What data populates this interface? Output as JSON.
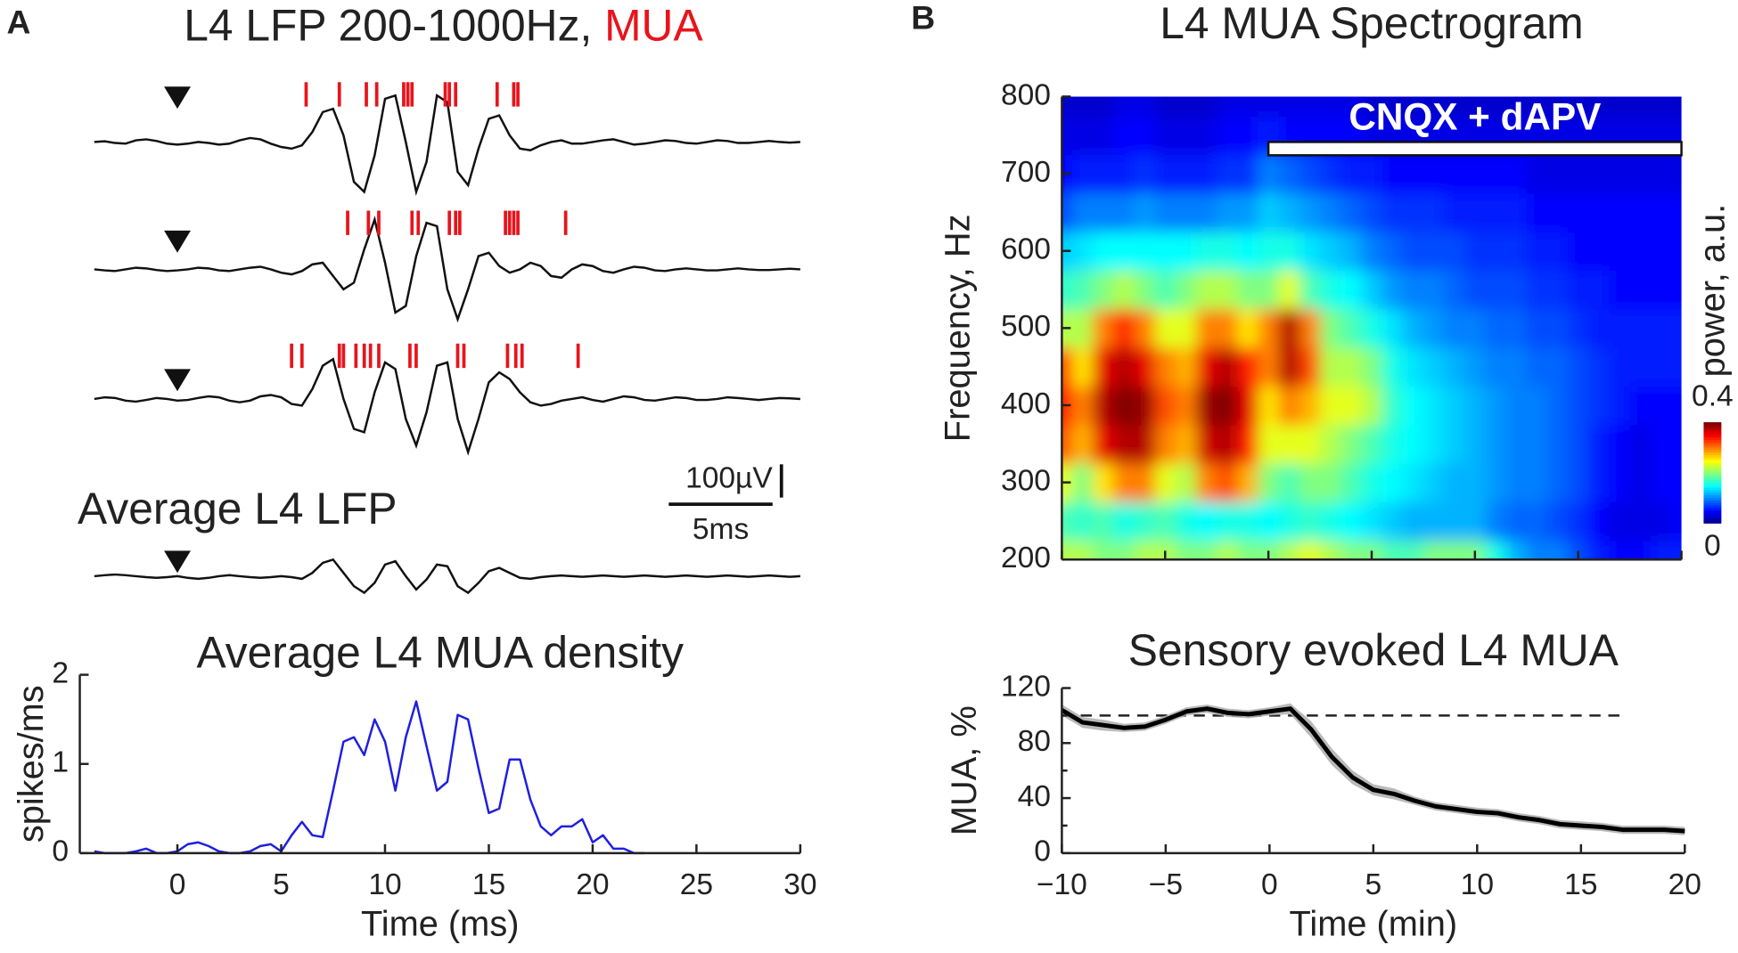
{
  "panel_labels": [
    "A",
    "B"
  ],
  "chart_data": [
    {
      "type": "traces",
      "title": "L4 LFP 200-1000Hz, ",
      "title_highlight": "MUA",
      "highlight_color": "#e8141c",
      "subtitle": "Average L4 LFP",
      "stimulus_x": 0,
      "spike_color": "#e8141c",
      "scale_bar": {
        "y_value": 100,
        "y_label": "100µV",
        "x_value": 5,
        "x_label": "5ms"
      },
      "x": [
        -4,
        -3.5,
        -3,
        -2.5,
        -2,
        -1.5,
        -1,
        -0.5,
        0,
        0.5,
        1,
        1.5,
        2,
        2.5,
        3,
        3.5,
        4,
        4.5,
        5,
        5.5,
        6,
        6.5,
        7,
        7.5,
        8,
        8.5,
        9,
        9.5,
        10,
        10.5,
        11,
        11.5,
        12,
        12.5,
        13,
        13.5,
        14,
        14.5,
        15,
        15.5,
        16,
        16.5,
        17,
        17.5,
        18,
        18.5,
        19,
        19.5,
        20,
        20.5,
        21,
        21.5,
        22,
        22.5,
        23,
        23.5,
        24,
        24.5,
        25,
        25.5,
        26,
        26.5,
        27,
        27.5,
        28,
        28.5,
        29,
        29.5,
        30
      ],
      "series": [
        {
          "color": "#111111",
          "values": [
            0,
            2,
            -3,
            -5,
            5,
            8,
            3,
            -5,
            -8,
            -5,
            0,
            -3,
            -8,
            -5,
            5,
            12,
            8,
            -5,
            -15,
            -20,
            -10,
            30,
            90,
            100,
            20,
            -120,
            -150,
            -40,
            130,
            140,
            0,
            -150,
            -60,
            140,
            120,
            -90,
            -130,
            -20,
            70,
            80,
            20,
            -20,
            -25,
            -10,
            0,
            5,
            -5,
            -5,
            0,
            5,
            8,
            0,
            -8,
            -5,
            0,
            5,
            3,
            -3,
            -5,
            0,
            5,
            3,
            -3,
            -3,
            0,
            3,
            0,
            -2,
            0
          ],
          "spikes": [
            6.2,
            7.8,
            9.1,
            9.6,
            10.9,
            11.1,
            11.3,
            12.9,
            13.1,
            13.4,
            15.4,
            16.2,
            16.4
          ]
        },
        {
          "color": "#111111",
          "values": [
            0,
            -3,
            -5,
            0,
            5,
            3,
            -2,
            -5,
            -3,
            0,
            5,
            3,
            -3,
            -5,
            0,
            5,
            8,
            0,
            -10,
            -15,
            -5,
            15,
            20,
            -20,
            -60,
            -40,
            60,
            150,
            20,
            -130,
            -110,
            40,
            140,
            130,
            -60,
            -150,
            -60,
            40,
            50,
            10,
            -10,
            0,
            20,
            10,
            -20,
            -25,
            0,
            15,
            10,
            -5,
            -10,
            0,
            8,
            5,
            -3,
            -5,
            0,
            3,
            0,
            -3,
            -3,
            0,
            3,
            0,
            -2,
            -2,
            0,
            2,
            0
          ],
          "spikes": [
            8.2,
            9.2,
            9.7,
            11.3,
            11.6,
            13.1,
            13.4,
            13.6,
            15.8,
            16.0,
            16.2,
            16.4,
            18.7
          ]
        },
        {
          "color": "#111111",
          "values": [
            0,
            5,
            3,
            -5,
            -8,
            -3,
            3,
            0,
            -5,
            -3,
            3,
            8,
            5,
            -5,
            -10,
            -5,
            8,
            12,
            5,
            -15,
            -20,
            30,
            100,
            120,
            0,
            -90,
            -100,
            20,
            110,
            90,
            -60,
            -140,
            -40,
            100,
            110,
            -60,
            -160,
            -60,
            50,
            80,
            60,
            20,
            -10,
            -20,
            -15,
            -5,
            0,
            5,
            -3,
            -8,
            0,
            8,
            5,
            -3,
            -5,
            0,
            5,
            3,
            -3,
            -3,
            0,
            5,
            3,
            0,
            -3,
            0,
            3,
            2,
            0
          ],
          "spikes": [
            5.5,
            6.0,
            7.8,
            8.0,
            8.6,
            9.0,
            9.3,
            9.7,
            11.2,
            11.5,
            13.5,
            13.8,
            15.9,
            16.3,
            16.6,
            19.3
          ]
        },
        {
          "color": "#111111",
          "values": [
            0,
            3,
            5,
            3,
            0,
            -3,
            -5,
            -3,
            0,
            -5,
            -8,
            -5,
            0,
            3,
            0,
            -3,
            -5,
            -3,
            0,
            -3,
            -8,
            10,
            40,
            50,
            10,
            -30,
            -50,
            -20,
            35,
            45,
            0,
            -40,
            -10,
            35,
            30,
            -30,
            -50,
            -20,
            15,
            25,
            10,
            -5,
            -8,
            -3,
            0,
            2,
            0,
            -2,
            0,
            2,
            0,
            -2,
            0,
            2,
            0,
            -2,
            0,
            2,
            0,
            -2,
            0,
            2,
            0,
            -2,
            0,
            2,
            0,
            -2,
            0
          ]
        }
      ]
    },
    {
      "type": "line",
      "title": "Average L4 MUA density",
      "xlabel": "Time (ms)",
      "ylabel": "spikes/ms",
      "x": [
        -4,
        -3.5,
        -3,
        -2.5,
        -2,
        -1.5,
        -1,
        -0.5,
        0,
        0.5,
        1,
        1.5,
        2,
        2.5,
        3,
        3.5,
        4,
        4.5,
        5,
        5.5,
        6,
        6.5,
        7,
        7.5,
        8,
        8.5,
        9,
        9.5,
        10,
        10.5,
        11,
        11.5,
        12,
        12.5,
        13,
        13.5,
        14,
        14.5,
        15,
        15.5,
        16,
        16.5,
        17,
        17.5,
        18,
        18.5,
        19,
        19.5,
        20,
        20.5,
        21,
        21.5,
        22,
        22.5
      ],
      "series": [
        {
          "color": "#1f1fe0",
          "values": [
            0.02,
            0,
            0,
            0,
            0.02,
            0.05,
            0,
            0,
            0.02,
            0.1,
            0.12,
            0.08,
            0.02,
            0,
            0,
            0.02,
            0.08,
            0.1,
            0.02,
            0.2,
            0.35,
            0.2,
            0.18,
            0.7,
            1.25,
            1.3,
            1.1,
            1.5,
            1.25,
            0.7,
            1.3,
            1.7,
            1.2,
            0.7,
            0.8,
            1.55,
            1.5,
            0.95,
            0.45,
            0.5,
            1.05,
            1.05,
            0.6,
            0.3,
            0.2,
            0.3,
            0.3,
            0.38,
            0.12,
            0.2,
            0.05,
            0.05,
            0,
            0
          ]
        }
      ],
      "xlim": [
        -4.7,
        30
      ],
      "xticks": [
        0,
        5,
        10,
        15,
        20,
        25,
        30
      ],
      "ylim": [
        0,
        2
      ],
      "yticks": [
        0,
        1,
        2
      ]
    },
    {
      "type": "heatmap",
      "title": "L4 MUA Spectrogram",
      "ylabel": "Frequency, Hz",
      "colorbar_label": "power, a.u.",
      "x": [
        -10,
        -9,
        -8,
        -7,
        -6,
        -5,
        -4,
        -3,
        -2,
        -1,
        0,
        1,
        2,
        3,
        4,
        5,
        6,
        7,
        8,
        9,
        10,
        11,
        12,
        13,
        14,
        15,
        16,
        17,
        18,
        19,
        20
      ],
      "y": [
        200,
        250,
        300,
        350,
        400,
        450,
        500,
        550,
        600,
        650,
        700,
        750,
        800
      ],
      "z": [
        [
          0.22,
          0.22,
          0.2,
          0.2,
          0.22,
          0.22,
          0.2,
          0.2,
          0.22,
          0.2,
          0.2,
          0.22,
          0.24,
          0.22,
          0.2,
          0.2,
          0.18,
          0.18,
          0.2,
          0.2,
          0.2,
          0.16,
          0.12,
          0.1,
          0.1,
          0.08,
          0.06,
          0.05,
          0.05,
          0.06,
          0.06
        ],
        [
          0.18,
          0.17,
          0.18,
          0.16,
          0.17,
          0.18,
          0.16,
          0.15,
          0.16,
          0.16,
          0.15,
          0.16,
          0.17,
          0.16,
          0.15,
          0.14,
          0.13,
          0.12,
          0.12,
          0.12,
          0.12,
          0.1,
          0.09,
          0.09,
          0.08,
          0.07,
          0.05,
          0.04,
          0.04,
          0.04,
          0.05
        ],
        [
          0.24,
          0.2,
          0.26,
          0.3,
          0.3,
          0.24,
          0.22,
          0.3,
          0.32,
          0.28,
          0.2,
          0.18,
          0.2,
          0.2,
          0.18,
          0.16,
          0.15,
          0.14,
          0.13,
          0.12,
          0.12,
          0.11,
          0.1,
          0.1,
          0.09,
          0.08,
          0.06,
          0.05,
          0.04,
          0.05,
          0.05
        ],
        [
          0.32,
          0.28,
          0.36,
          0.38,
          0.38,
          0.3,
          0.28,
          0.37,
          0.38,
          0.34,
          0.24,
          0.24,
          0.24,
          0.22,
          0.2,
          0.18,
          0.16,
          0.15,
          0.14,
          0.13,
          0.12,
          0.11,
          0.1,
          0.1,
          0.09,
          0.08,
          0.06,
          0.05,
          0.04,
          0.05,
          0.05
        ],
        [
          0.35,
          0.3,
          0.38,
          0.4,
          0.39,
          0.32,
          0.3,
          0.39,
          0.4,
          0.36,
          0.26,
          0.3,
          0.28,
          0.24,
          0.24,
          0.22,
          0.17,
          0.15,
          0.14,
          0.13,
          0.12,
          0.11,
          0.1,
          0.1,
          0.09,
          0.08,
          0.07,
          0.06,
          0.05,
          0.05,
          0.05
        ],
        [
          0.33,
          0.26,
          0.36,
          0.38,
          0.36,
          0.3,
          0.28,
          0.36,
          0.38,
          0.34,
          0.3,
          0.38,
          0.32,
          0.22,
          0.22,
          0.2,
          0.16,
          0.14,
          0.13,
          0.12,
          0.11,
          0.1,
          0.1,
          0.09,
          0.09,
          0.08,
          0.07,
          0.06,
          0.06,
          0.06,
          0.06
        ],
        [
          0.22,
          0.22,
          0.3,
          0.34,
          0.3,
          0.24,
          0.24,
          0.3,
          0.3,
          0.26,
          0.3,
          0.38,
          0.3,
          0.2,
          0.18,
          0.16,
          0.14,
          0.12,
          0.11,
          0.1,
          0.1,
          0.09,
          0.09,
          0.08,
          0.08,
          0.07,
          0.06,
          0.06,
          0.06,
          0.06,
          0.06
        ],
        [
          0.17,
          0.18,
          0.2,
          0.22,
          0.2,
          0.18,
          0.2,
          0.22,
          0.22,
          0.2,
          0.2,
          0.24,
          0.18,
          0.16,
          0.15,
          0.13,
          0.11,
          0.1,
          0.1,
          0.09,
          0.08,
          0.08,
          0.08,
          0.07,
          0.07,
          0.06,
          0.06,
          0.05,
          0.05,
          0.05,
          0.05
        ],
        [
          0.13,
          0.14,
          0.15,
          0.15,
          0.15,
          0.15,
          0.15,
          0.16,
          0.16,
          0.15,
          0.16,
          0.16,
          0.14,
          0.13,
          0.12,
          0.1,
          0.09,
          0.08,
          0.08,
          0.08,
          0.07,
          0.07,
          0.07,
          0.06,
          0.06,
          0.05,
          0.05,
          0.05,
          0.05,
          0.05,
          0.05
        ],
        [
          0.08,
          0.1,
          0.1,
          0.1,
          0.11,
          0.1,
          0.1,
          0.1,
          0.11,
          0.11,
          0.13,
          0.12,
          0.11,
          0.1,
          0.09,
          0.08,
          0.07,
          0.07,
          0.07,
          0.06,
          0.06,
          0.06,
          0.06,
          0.05,
          0.05,
          0.05,
          0.05,
          0.05,
          0.05,
          0.05,
          0.05
        ],
        [
          0.05,
          0.06,
          0.06,
          0.06,
          0.07,
          0.06,
          0.06,
          0.06,
          0.07,
          0.07,
          0.1,
          0.09,
          0.08,
          0.07,
          0.06,
          0.06,
          0.05,
          0.05,
          0.05,
          0.05,
          0.05,
          0.05,
          0.05,
          0.04,
          0.04,
          0.04,
          0.04,
          0.04,
          0.04,
          0.04,
          0.04
        ],
        [
          0.04,
          0.04,
          0.04,
          0.05,
          0.05,
          0.04,
          0.04,
          0.04,
          0.05,
          0.05,
          0.06,
          0.05,
          0.05,
          0.05,
          0.05,
          0.04,
          0.04,
          0.04,
          0.04,
          0.04,
          0.04,
          0.04,
          0.04,
          0.04,
          0.04,
          0.04,
          0.04,
          0.04,
          0.04,
          0.04,
          0.04
        ],
        [
          0.03,
          0.03,
          0.03,
          0.04,
          0.04,
          0.03,
          0.03,
          0.03,
          0.04,
          0.04,
          0.04,
          0.04,
          0.04,
          0.04,
          0.04,
          0.03,
          0.03,
          0.03,
          0.03,
          0.03,
          0.03,
          0.03,
          0.03,
          0.03,
          0.03,
          0.03,
          0.03,
          0.03,
          0.03,
          0.03,
          0.03
        ]
      ],
      "colormap": "jet",
      "clim": [
        0,
        0.4
      ],
      "cticks": [
        0,
        0.4
      ],
      "xlim": [
        -10,
        20
      ],
      "xticks": [
        -10,
        -5,
        0,
        5,
        10,
        15,
        20
      ],
      "xtick_labels": false,
      "ylim": [
        200,
        800
      ],
      "yticks": [
        200,
        300,
        400,
        500,
        600,
        700,
        800
      ],
      "annotation": {
        "text": "CNQX + dAPV",
        "x": [
          0,
          20
        ]
      }
    },
    {
      "type": "line",
      "title": "Sensory evoked L4 MUA",
      "xlabel": "Time (min)",
      "ylabel": "MUA, %",
      "x": [
        -10,
        -9,
        -8,
        -7,
        -6,
        -5,
        -4,
        -3,
        -2,
        -1,
        0,
        1,
        2,
        3,
        4,
        5,
        6,
        7,
        8,
        9,
        10,
        11,
        12,
        13,
        14,
        15,
        16,
        17,
        18,
        19,
        20
      ],
      "series": [
        {
          "color": "#000000",
          "error_color": "#a9a9a9",
          "values": [
            104,
            95,
            93,
            91,
            92,
            97,
            103,
            105,
            102,
            101,
            103,
            105,
            90,
            70,
            55,
            46,
            43,
            38,
            34,
            32,
            30,
            29,
            26,
            24,
            21,
            20,
            19,
            17,
            17,
            17,
            16
          ],
          "errors": [
            4,
            4,
            4,
            3,
            3,
            3,
            3,
            3,
            3,
            3,
            3,
            4,
            6,
            6,
            5,
            4,
            4,
            3,
            3,
            3,
            3,
            3,
            3,
            3,
            3,
            3,
            3,
            3,
            3,
            3,
            3
          ]
        }
      ],
      "hline": {
        "y": 100,
        "x": [
          -10,
          17
        ]
      },
      "xlim": [
        -10,
        20
      ],
      "xticks": [
        {
          "value": -10,
          "label": "−10"
        },
        {
          "value": -5,
          "label": "−5"
        },
        0,
        5,
        10,
        15,
        20
      ],
      "ylim": [
        0,
        120
      ],
      "yticks": [
        0,
        40,
        80,
        120
      ],
      "yminorticks": [
        20,
        60,
        100
      ]
    }
  ]
}
